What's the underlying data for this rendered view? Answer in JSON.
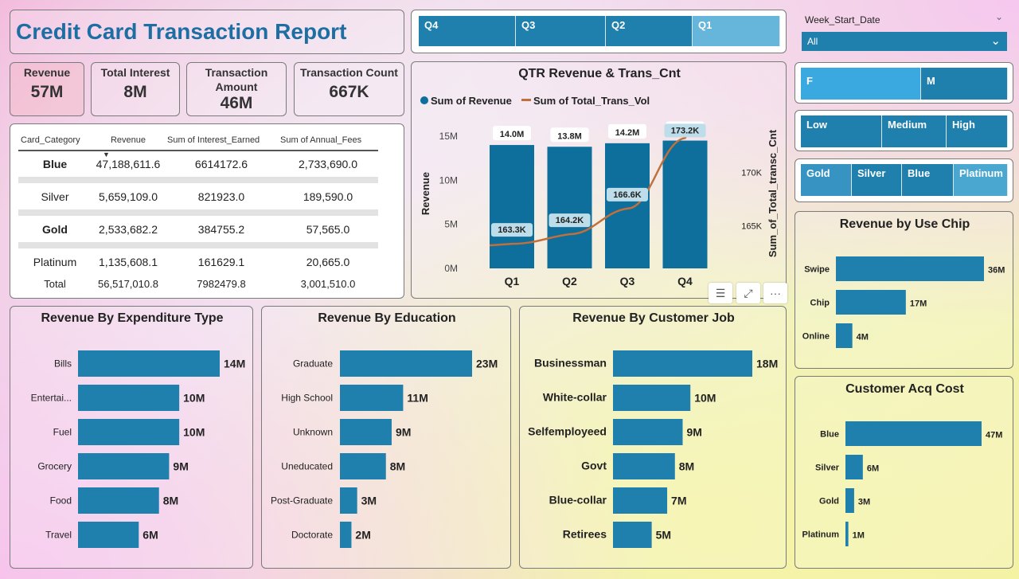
{
  "header": {
    "title": "Credit Card Transaction Report"
  },
  "kpis": [
    {
      "label": "Revenue",
      "value": "57M"
    },
    {
      "label": "Total Interest",
      "value": "8M"
    },
    {
      "label": "Transaction Amount",
      "value": "46M"
    },
    {
      "label": "Transaction Count",
      "value": "667K"
    }
  ],
  "quarter_slicer": [
    "Q4",
    "Q3",
    "Q2",
    "Q1"
  ],
  "week_filter": {
    "label": "Week_Start_Date",
    "value": "All"
  },
  "gender_slicer": [
    "F",
    "M"
  ],
  "income_slicer": [
    "Low",
    "Medium",
    "High"
  ],
  "card_slicer": [
    "Gold",
    "Silver",
    "Blue",
    "Platinum"
  ],
  "card_table": {
    "headers": [
      "Card_Category",
      "Revenue",
      "Sum of Interest_Earned",
      "Sum of Annual_Fees"
    ],
    "rows": [
      [
        "Blue",
        "47,188,611.6",
        "6614172.6",
        "2,733,690.0"
      ],
      [
        "Silver",
        "5,659,109.0",
        "821923.0",
        "189,590.0"
      ],
      [
        "Gold",
        "2,533,682.2",
        "384755.2",
        "57,565.0"
      ],
      [
        "Platinum",
        "1,135,608.1",
        "161629.1",
        "20,665.0"
      ]
    ],
    "total": [
      "Total",
      "56,517,010.8",
      "7982479.8",
      "3,001,510.0"
    ]
  },
  "colors": {
    "bar": "#1f7fad",
    "qtr_bar": "#0e6e9c",
    "line": "#c0703c",
    "slicer_dark": "#1f7fad",
    "slicer_light": "#65b6da"
  },
  "chart_data": [
    {
      "id": "qtr",
      "type": "bar+line",
      "title": "QTR Revenue & Trans_Cnt",
      "legend": [
        "Sum of Revenue",
        "Sum of Total_Trans_Vol"
      ],
      "ylabel": "Revenue",
      "y2label": "Sum_of_Total_transc_Cnt",
      "categories": [
        "Q1",
        "Q2",
        "Q3",
        "Q4"
      ],
      "values": [
        14.0,
        13.8,
        14.2,
        14.5
      ],
      "value_labels": [
        "14.0M",
        "13.8M",
        "14.2M",
        "14.5M"
      ],
      "line_values": [
        163.3,
        164.2,
        166.6,
        173.2
      ],
      "line_labels": [
        "163.3K",
        "164.2K",
        "166.6K",
        "173.2K"
      ],
      "yticks": [
        "0M",
        "5M",
        "10M",
        "15M"
      ],
      "y2ticks": [
        "165K",
        "170K"
      ],
      "ylim": [
        0,
        15
      ],
      "y2lim": [
        161,
        173
      ]
    },
    {
      "id": "chip",
      "type": "bar",
      "title": "Revenue by Use Chip",
      "categories": [
        "Swipe",
        "Chip",
        "Online"
      ],
      "values": [
        36,
        17,
        4
      ],
      "labels": [
        "36M",
        "17M",
        "4M"
      ]
    },
    {
      "id": "acq",
      "type": "bar",
      "title": "Customer Acq Cost",
      "categories": [
        "Blue",
        "Silver",
        "Gold",
        "Platinum"
      ],
      "values": [
        47,
        6,
        3,
        1
      ],
      "labels": [
        "47M",
        "6M",
        "3M",
        "1M"
      ]
    },
    {
      "id": "exp",
      "type": "bar",
      "title": "Revenue By Expenditure Type",
      "categories": [
        "Bills",
        "Entertai...",
        "Fuel",
        "Grocery",
        "Food",
        "Travel"
      ],
      "values": [
        14,
        10,
        10,
        9,
        8,
        6
      ],
      "labels": [
        "14M",
        "10M",
        "10M",
        "9M",
        "8M",
        "6M"
      ]
    },
    {
      "id": "edu",
      "type": "bar",
      "title": "Revenue By Education",
      "categories": [
        "Graduate",
        "High School",
        "Unknown",
        "Uneducated",
        "Post-Graduate",
        "Doctorate"
      ],
      "values": [
        23,
        11,
        9,
        8,
        3,
        2
      ],
      "labels": [
        "23M",
        "11M",
        "9M",
        "8M",
        "3M",
        "2M"
      ]
    },
    {
      "id": "job",
      "type": "bar",
      "title": "Revenue By Customer Job",
      "categories": [
        "Businessman",
        "White-collar",
        "Selfemployeed",
        "Govt",
        "Blue-collar",
        "Retirees"
      ],
      "values": [
        18,
        10,
        9,
        8,
        7,
        5
      ],
      "labels": [
        "18M",
        "10M",
        "9M",
        "8M",
        "7M",
        "5M"
      ]
    }
  ]
}
